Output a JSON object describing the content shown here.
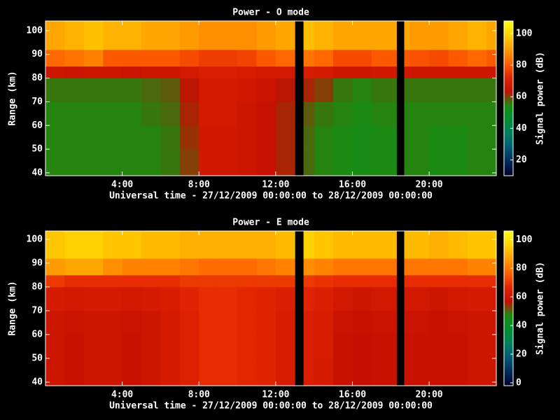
{
  "chart_data": [
    {
      "type": "heatmap",
      "title": "Power - O mode",
      "x_label": "Universal time - 27/12/2009 00:00:00 to 28/12/2009 00:00:00",
      "y_label": "Range (km)",
      "colorbar_label": "Signal power (dB)",
      "x_bins": [
        0,
        1,
        2,
        3,
        4,
        5,
        6,
        7,
        8,
        9,
        10,
        11,
        12,
        13,
        13.45,
        14,
        15,
        16,
        17,
        18,
        18.3,
        18.7,
        19,
        20,
        21,
        22,
        23,
        23.5
      ],
      "y_bins": [
        38.8,
        50,
        60,
        70,
        80,
        85,
        92,
        104.1
      ],
      "z": [
        [
          55,
          55,
          55,
          55,
          55,
          55,
          56,
          60,
          67,
          67,
          66,
          64,
          62,
          null,
          57,
          55,
          54,
          53,
          54,
          54,
          null,
          55,
          55,
          54,
          54,
          55,
          55
        ],
        [
          55,
          55,
          55,
          55,
          55,
          55,
          56,
          61,
          67,
          67,
          66,
          64,
          62,
          null,
          57,
          55,
          54,
          53,
          54,
          54,
          null,
          55,
          55,
          54,
          54,
          55,
          55
        ],
        [
          55,
          55,
          55,
          55,
          55,
          56,
          57,
          62,
          68,
          68,
          66,
          64,
          62,
          null,
          58,
          56,
          55,
          54,
          55,
          55,
          null,
          55,
          55,
          55,
          55,
          55,
          55
        ],
        [
          56,
          56,
          56,
          56,
          56,
          57,
          58,
          63,
          68,
          68,
          67,
          65,
          63,
          null,
          62,
          60,
          56,
          55,
          56,
          56,
          null,
          56,
          56,
          56,
          56,
          56,
          56
        ],
        [
          66,
          65,
          66,
          66,
          65,
          66,
          66,
          68,
          70,
          70,
          69,
          68,
          68,
          null,
          69,
          68,
          66,
          66,
          67,
          67,
          null,
          67,
          66,
          66,
          66,
          66,
          66
        ],
        [
          82,
          84,
          86,
          80,
          80,
          80,
          80,
          78,
          76,
          76,
          77,
          80,
          82,
          null,
          84,
          82,
          78,
          78,
          80,
          80,
          null,
          80,
          79,
          78,
          80,
          82,
          80
        ],
        [
          92,
          94,
          96,
          94,
          94,
          92,
          92,
          90,
          88,
          88,
          88,
          90,
          92,
          null,
          96,
          94,
          92,
          92,
          92,
          92,
          null,
          92,
          90,
          90,
          92,
          94,
          92
        ]
      ],
      "xlim": [
        0,
        23.5
      ],
      "ylim": [
        38.8,
        104.1
      ],
      "zlim": [
        10,
        108
      ],
      "xticks": [
        {
          "value": 4,
          "label": "4:00"
        },
        {
          "value": 8,
          "label": "8:00"
        },
        {
          "value": 12,
          "label": "12:00"
        },
        {
          "value": 16,
          "label": "16:00"
        },
        {
          "value": 20,
          "label": "20:00"
        }
      ],
      "yticks": [
        40,
        50,
        60,
        70,
        80,
        90,
        100
      ],
      "zticks": [
        20,
        40,
        60,
        80,
        100
      ],
      "colorscale": [
        "#000028",
        "#002860",
        "#005a78",
        "#008060",
        "#009030",
        "#1c8a10",
        "#c41000",
        "#e22400",
        "#ff6200",
        "#ff9c00",
        "#ffd200",
        "#ffff10"
      ]
    },
    {
      "type": "heatmap",
      "title": "Power - E mode",
      "x_label": "Universal time - 27/12/2009 00:00:00 to 28/12/2009 00:00:00",
      "y_label": "Range (km)",
      "colorbar_label": "Signal power (dB)",
      "x_bins": [
        0,
        1,
        2,
        3,
        4,
        5,
        6,
        7,
        8,
        9,
        10,
        11,
        12,
        13,
        13.45,
        14,
        15,
        16,
        17,
        18,
        18.3,
        18.7,
        19,
        20,
        21,
        22,
        23,
        23.5
      ],
      "y_bins": [
        38.5,
        50,
        60,
        70,
        80,
        85,
        92,
        103.5
      ],
      "z": [
        [
          60,
          58,
          60,
          60,
          58,
          60,
          62,
          65,
          68,
          68,
          67,
          66,
          63,
          null,
          64,
          62,
          58,
          57,
          58,
          58,
          null,
          58,
          58,
          58,
          58,
          60,
          60
        ],
        [
          60,
          58,
          60,
          60,
          58,
          60,
          62,
          65,
          68,
          68,
          67,
          66,
          63,
          null,
          64,
          63,
          58,
          57,
          58,
          58,
          null,
          58,
          58,
          58,
          58,
          60,
          60
        ],
        [
          60,
          59,
          60,
          60,
          59,
          60,
          62,
          65,
          68,
          68,
          67,
          66,
          63,
          null,
          64,
          63,
          59,
          58,
          59,
          59,
          null,
          59,
          59,
          58,
          59,
          60,
          60
        ],
        [
          62,
          61,
          62,
          62,
          61,
          62,
          63,
          66,
          68,
          68,
          67,
          66,
          64,
          null,
          66,
          64,
          61,
          60,
          61,
          61,
          null,
          61,
          61,
          60,
          61,
          62,
          62
        ],
        [
          70,
          68,
          68,
          68,
          68,
          68,
          68,
          70,
          70,
          70,
          70,
          70,
          70,
          null,
          70,
          69,
          68,
          68,
          68,
          68,
          null,
          68,
          68,
          68,
          68,
          68,
          68
        ],
        [
          86,
          88,
          88,
          84,
          82,
          82,
          82,
          80,
          78,
          78,
          78,
          80,
          82,
          null,
          84,
          82,
          80,
          80,
          80,
          80,
          null,
          80,
          80,
          80,
          80,
          82,
          82
        ],
        [
          94,
          96,
          96,
          94,
          94,
          92,
          92,
          90,
          90,
          90,
          90,
          90,
          92,
          null,
          96,
          94,
          92,
          92,
          92,
          92,
          null,
          92,
          92,
          90,
          92,
          94,
          94
        ]
      ],
      "xlim": [
        0,
        23.5
      ],
      "ylim": [
        38.5,
        103.5
      ],
      "zlim": [
        -2,
        106
      ],
      "xticks": [
        {
          "value": 4,
          "label": "4:00"
        },
        {
          "value": 8,
          "label": "8:00"
        },
        {
          "value": 12,
          "label": "12:00"
        },
        {
          "value": 16,
          "label": "16:00"
        },
        {
          "value": 20,
          "label": "20:00"
        }
      ],
      "yticks": [
        40,
        50,
        60,
        70,
        80,
        90,
        100
      ],
      "zticks": [
        0,
        20,
        40,
        60,
        80,
        100
      ],
      "colorscale": [
        "#000028",
        "#002860",
        "#005a78",
        "#008060",
        "#009030",
        "#1c8a10",
        "#c41000",
        "#e22400",
        "#ff6200",
        "#ff9c00",
        "#ffd200",
        "#ffff10"
      ]
    }
  ]
}
